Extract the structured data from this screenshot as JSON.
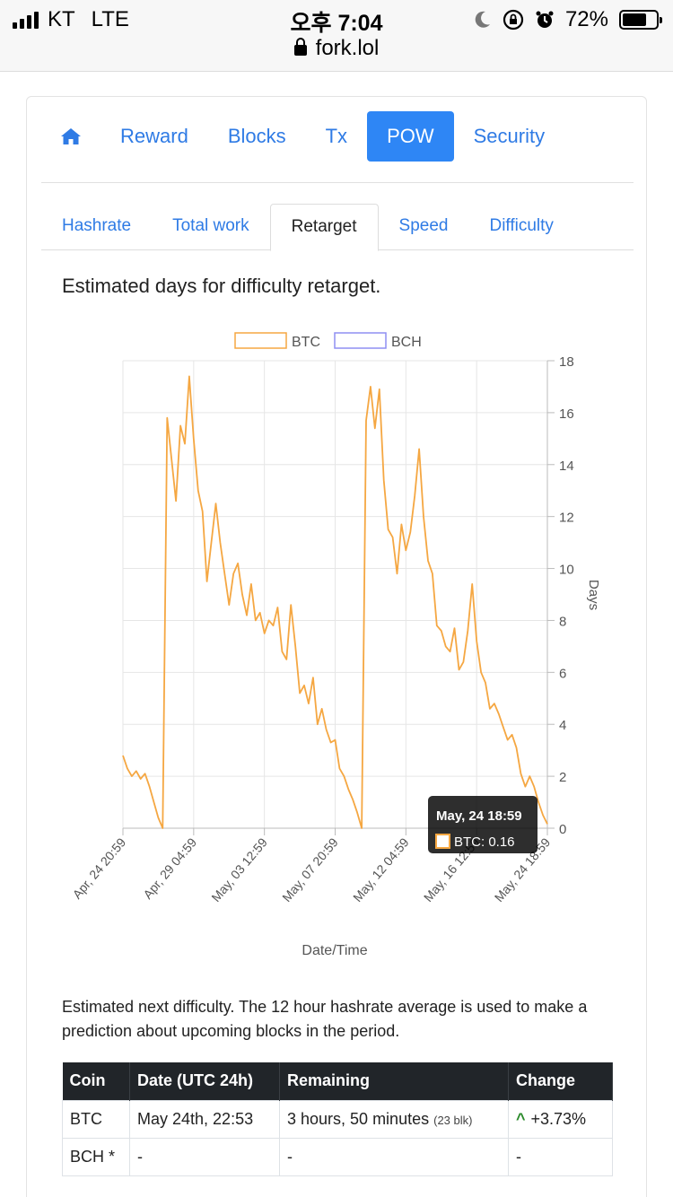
{
  "status_bar": {
    "carrier": "KT",
    "network": "LTE",
    "time": "오후 7:04",
    "url": "fork.lol",
    "battery": "72%",
    "battery_fraction": 0.72
  },
  "main_nav": {
    "items": [
      {
        "label": "Reward"
      },
      {
        "label": "Blocks"
      },
      {
        "label": "Tx"
      },
      {
        "label": "POW"
      },
      {
        "label": "Security"
      }
    ],
    "active": "POW"
  },
  "sub_tabs": {
    "items": [
      {
        "label": "Hashrate"
      },
      {
        "label": "Total work"
      },
      {
        "label": "Retarget"
      },
      {
        "label": "Speed"
      },
      {
        "label": "Difficulty"
      }
    ],
    "active": "Retarget"
  },
  "page": {
    "heading": "Estimated days for difficulty retarget.",
    "description": "Estimated next difficulty. The 12 hour hashrate average is used to make a prediction about upcoming blocks in the period."
  },
  "chart_data": {
    "type": "line",
    "title": "",
    "xlabel": "Date/Time",
    "ylabel": "Days",
    "ylim": [
      0,
      18
    ],
    "yticks": [
      0,
      2,
      4,
      6,
      8,
      10,
      12,
      14,
      16,
      18
    ],
    "x_tick_labels": [
      "Apr, 24 20:59",
      "Apr, 29 04:59",
      "May, 03 12:59",
      "May, 07 20:59",
      "May, 12 04:59",
      "May, 16 12:59",
      "May, 24 18:59"
    ],
    "legend_position": "top",
    "series": [
      {
        "name": "BTC",
        "color": "#f5a742",
        "values": [
          2.8,
          2.3,
          2.0,
          2.2,
          1.9,
          2.1,
          1.6,
          1.0,
          0.4,
          0.0,
          15.8,
          14.2,
          12.6,
          15.5,
          14.8,
          17.4,
          15.0,
          13.0,
          12.2,
          9.5,
          11.0,
          12.5,
          11.0,
          9.8,
          8.6,
          9.8,
          10.2,
          9.0,
          8.2,
          9.4,
          8.0,
          8.3,
          7.5,
          8.0,
          7.8,
          8.5,
          6.8,
          6.5,
          8.6,
          7.0,
          5.2,
          5.5,
          4.8,
          5.8,
          4.0,
          4.6,
          3.8,
          3.3,
          3.4,
          2.3,
          2.0,
          1.5,
          1.1,
          0.6,
          0.0,
          15.7,
          17.0,
          15.4,
          16.9,
          13.4,
          11.5,
          11.2,
          9.8,
          11.7,
          10.7,
          11.4,
          12.8,
          14.6,
          12.0,
          10.3,
          9.8,
          7.8,
          7.6,
          7.0,
          6.8,
          7.7,
          6.1,
          6.4,
          7.6,
          9.4,
          7.2,
          6.0,
          5.6,
          4.6,
          4.8,
          4.4,
          3.9,
          3.4,
          3.6,
          3.1,
          2.1,
          1.6,
          2.0,
          1.6,
          1.0,
          0.5,
          0.16
        ]
      },
      {
        "name": "BCH",
        "color": "#8f8ff2",
        "values": []
      }
    ],
    "tooltip": {
      "title": "May, 24 18:59",
      "label": "BTC: 0.16"
    }
  },
  "table": {
    "headers": [
      "Coin",
      "Date (UTC 24h)",
      "Remaining",
      "Change"
    ],
    "rows": [
      {
        "coin": "BTC",
        "date": "May 24th, 22:53",
        "remaining": "3 hours, 50 minutes",
        "blocks": "(23 blk)",
        "change": "+3.73%"
      },
      {
        "coin": "BCH *",
        "date": "-",
        "remaining": "-",
        "blocks": "",
        "change": "-"
      }
    ]
  }
}
